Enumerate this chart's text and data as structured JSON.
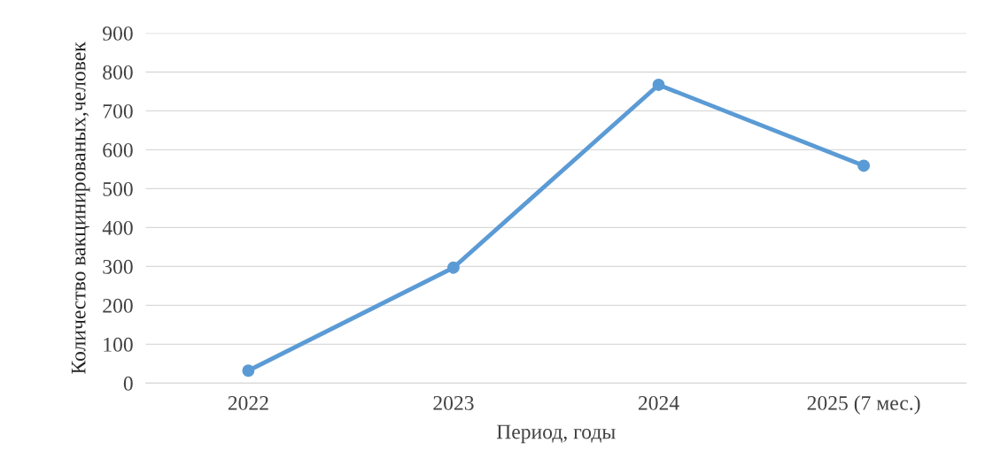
{
  "chart_data": {
    "type": "line",
    "xlabel": "Период, годы",
    "ylabel": "Количество вакцинированых,человек",
    "categories": [
      "2022",
      "2023",
      "2024",
      "2025 (7 мес.)"
    ],
    "series": [
      {
        "color": "#5b9bd5",
        "values": [
          32,
          297,
          767,
          559
        ]
      }
    ],
    "ylim": [
      0,
      900
    ],
    "yticks": [
      0,
      100,
      200,
      300,
      400,
      500,
      600,
      700,
      800,
      900
    ],
    "grid": "y",
    "marker": "circle",
    "line_style": "solid",
    "legend": false
  }
}
